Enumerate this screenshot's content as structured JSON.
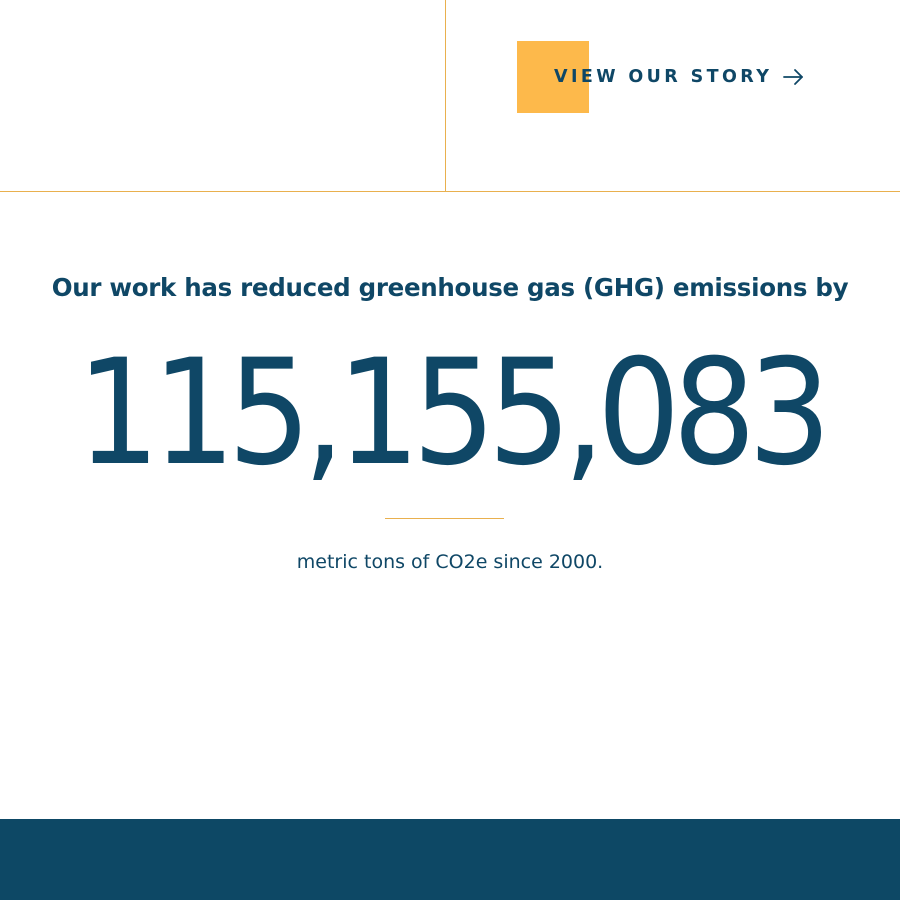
{
  "cta": {
    "label": "VIEW OUR STORY",
    "arrow_icon": "arrow-right-icon",
    "accent_color": "#fdb94b"
  },
  "stats": {
    "headline": "Our work has reduced greenhouse gas (GHG) emissions by",
    "value": "115,155,083",
    "caption": "metric tons of CO2e since 2000."
  },
  "colors": {
    "primary": "#0f4766",
    "divider": "#e9b04e",
    "footer": "#0d4865"
  }
}
